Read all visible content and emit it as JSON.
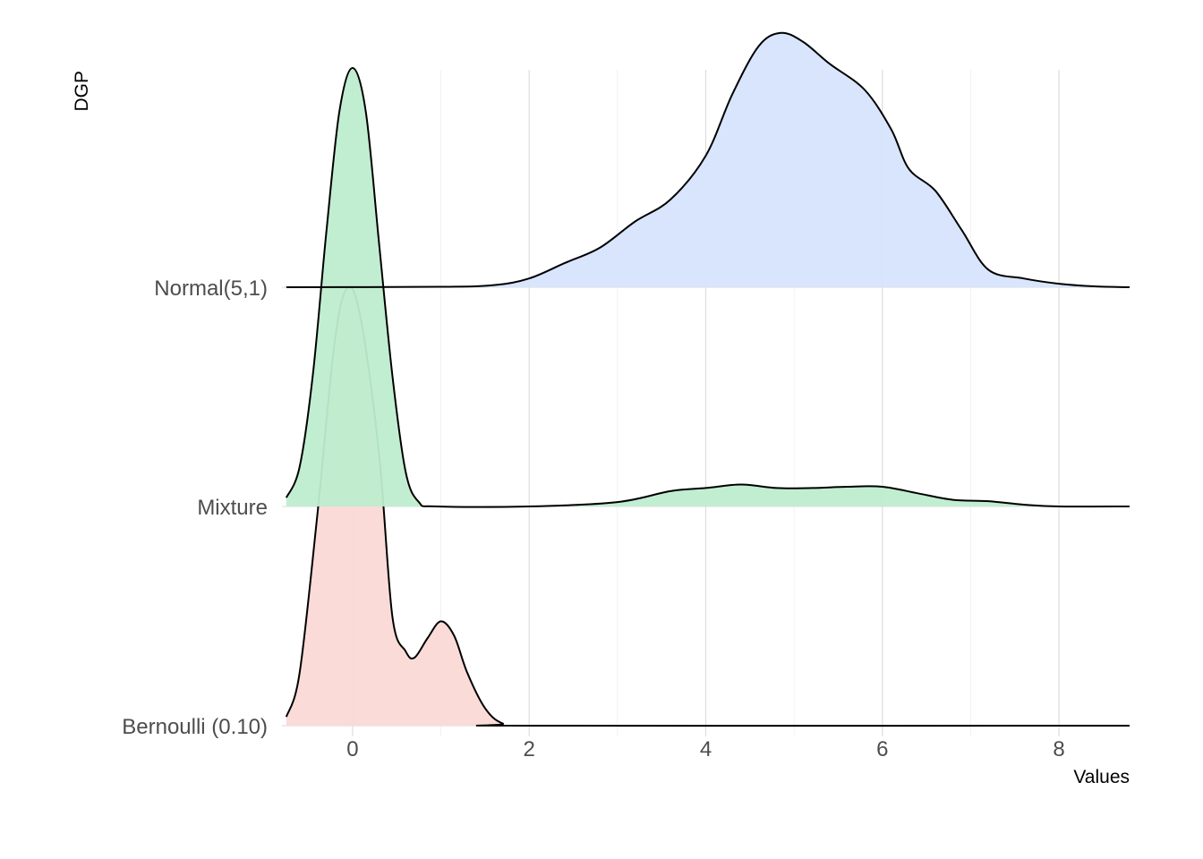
{
  "chart_data": {
    "type": "ridgeline",
    "xlabel": "Values",
    "ylabel": "DGP",
    "xlim": [
      -0.8,
      8.8
    ],
    "x_ticks": [
      0,
      2,
      4,
      6,
      8
    ],
    "grid": true,
    "series": [
      {
        "name": "Bernoulli (0.10)",
        "fill": "#fbd9d5",
        "points": [
          [
            -0.75,
            0.02
          ],
          [
            -0.6,
            0.12
          ],
          [
            -0.4,
            0.48
          ],
          [
            -0.2,
            0.88
          ],
          [
            -0.05,
            1.0
          ],
          [
            0.1,
            0.92
          ],
          [
            0.3,
            0.62
          ],
          [
            0.45,
            0.25
          ],
          [
            0.6,
            0.17
          ],
          [
            0.7,
            0.155
          ],
          [
            0.85,
            0.2
          ],
          [
            1.0,
            0.238
          ],
          [
            1.15,
            0.205
          ],
          [
            1.3,
            0.12
          ],
          [
            1.5,
            0.04
          ],
          [
            1.7,
            0.005
          ],
          [
            2.0,
            0.0
          ],
          [
            8.8,
            0.0
          ]
        ]
      },
      {
        "name": "Mixture",
        "fill": "#beedce",
        "points": [
          [
            -0.75,
            0.02
          ],
          [
            -0.6,
            0.09
          ],
          [
            -0.45,
            0.3
          ],
          [
            -0.3,
            0.62
          ],
          [
            -0.15,
            0.9
          ],
          [
            0.0,
            1.0
          ],
          [
            0.15,
            0.9
          ],
          [
            0.3,
            0.6
          ],
          [
            0.45,
            0.3
          ],
          [
            0.6,
            0.08
          ],
          [
            0.75,
            0.01
          ],
          [
            0.95,
            0.0
          ],
          [
            2.0,
            0.0
          ],
          [
            3.0,
            0.01
          ],
          [
            3.6,
            0.035
          ],
          [
            4.0,
            0.042
          ],
          [
            4.4,
            0.05
          ],
          [
            4.8,
            0.042
          ],
          [
            5.2,
            0.042
          ],
          [
            5.6,
            0.045
          ],
          [
            6.0,
            0.045
          ],
          [
            6.4,
            0.03
          ],
          [
            6.8,
            0.015
          ],
          [
            7.2,
            0.012
          ],
          [
            7.6,
            0.004
          ],
          [
            8.0,
            0.0
          ],
          [
            8.8,
            0.0
          ]
        ]
      },
      {
        "name": "Normal(5,1)",
        "fill": "#d6e4fc",
        "points": [
          [
            -0.75,
            0.0
          ],
          [
            1.0,
            0.001
          ],
          [
            1.6,
            0.005
          ],
          [
            2.0,
            0.02
          ],
          [
            2.4,
            0.055
          ],
          [
            2.8,
            0.09
          ],
          [
            3.2,
            0.15
          ],
          [
            3.6,
            0.2
          ],
          [
            4.0,
            0.3
          ],
          [
            4.3,
            0.44
          ],
          [
            4.6,
            0.55
          ],
          [
            4.85,
            0.58
          ],
          [
            5.1,
            0.56
          ],
          [
            5.4,
            0.51
          ],
          [
            5.8,
            0.45
          ],
          [
            6.1,
            0.36
          ],
          [
            6.3,
            0.27
          ],
          [
            6.6,
            0.22
          ],
          [
            6.9,
            0.13
          ],
          [
            7.2,
            0.04
          ],
          [
            7.6,
            0.02
          ],
          [
            8.0,
            0.008
          ],
          [
            8.4,
            0.002
          ],
          [
            8.8,
            0.0
          ]
        ]
      }
    ]
  }
}
